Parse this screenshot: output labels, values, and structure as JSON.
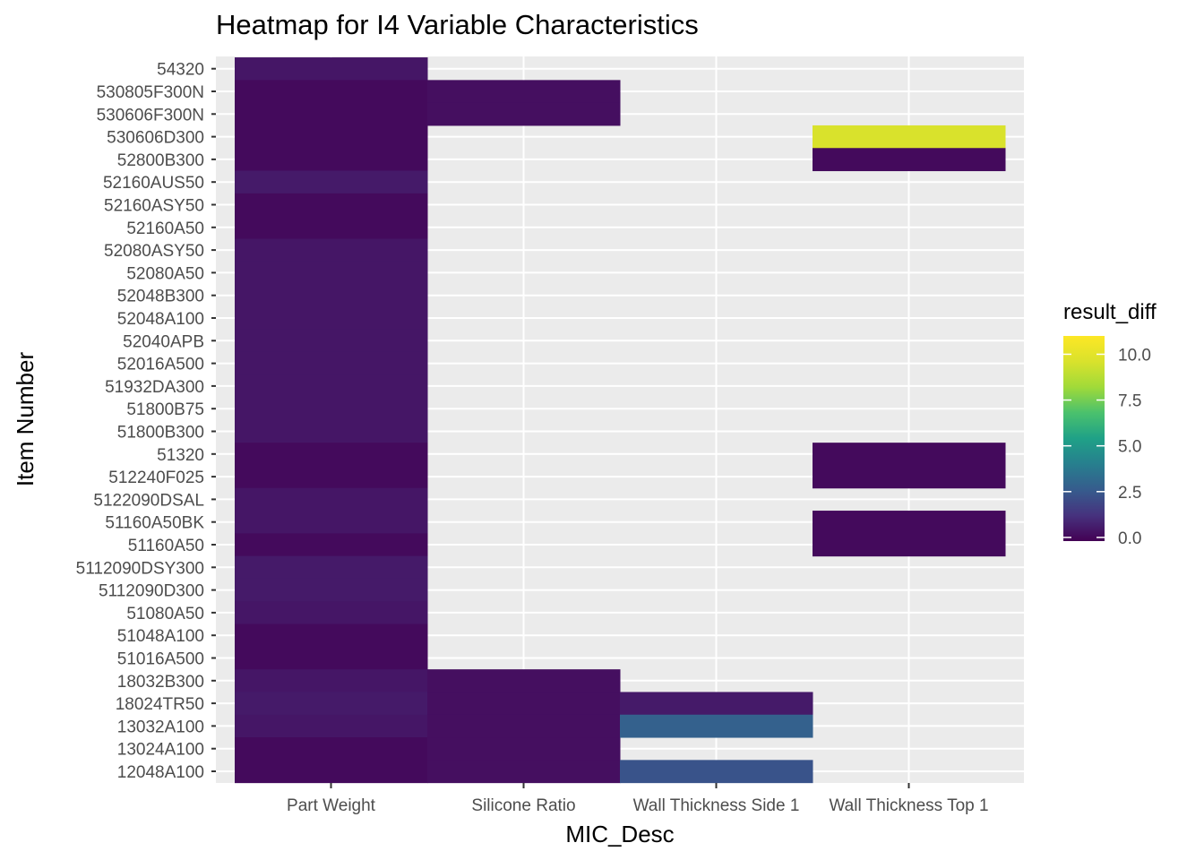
{
  "chart_data": {
    "type": "heatmap",
    "title": "Heatmap for I4 Variable Characteristics",
    "xlabel": "MIC_Desc",
    "ylabel": "Item Number",
    "x_categories": [
      "Part Weight",
      "Silicone Ratio",
      "Wall Thickness Side 1",
      "Wall Thickness Top 1"
    ],
    "y_categories": [
      "12048A100",
      "13024A100",
      "13032A100",
      "18024TR50",
      "18032B300",
      "51016A500",
      "51048A100",
      "51080A50",
      "5112090D300",
      "5112090DSY300",
      "51160A50",
      "51160A50BK",
      "5122090DSAL",
      "512240F025",
      "51320",
      "51800B300",
      "51800B75",
      "51932DA300",
      "52016A500",
      "52040APB",
      "52048A100",
      "52048B300",
      "52080A50",
      "52080ASY50",
      "52160A50",
      "52160ASY50",
      "52160AUS50",
      "52800B300",
      "530606D300",
      "530606F300N",
      "530805F300N",
      "54320"
    ],
    "cells": [
      {
        "x": "Part Weight",
        "y": "54320",
        "value": 0.4
      },
      {
        "x": "Part Weight",
        "y": "530805F300N",
        "value": 0.05
      },
      {
        "x": "Part Weight",
        "y": "530606F300N",
        "value": 0.05
      },
      {
        "x": "Part Weight",
        "y": "530606D300",
        "value": 0.05
      },
      {
        "x": "Part Weight",
        "y": "52800B300",
        "value": 0.05
      },
      {
        "x": "Part Weight",
        "y": "52160AUS50",
        "value": 0.5
      },
      {
        "x": "Part Weight",
        "y": "52160ASY50",
        "value": 0.05
      },
      {
        "x": "Part Weight",
        "y": "52160A50",
        "value": 0.05
      },
      {
        "x": "Part Weight",
        "y": "52080ASY50",
        "value": 0.4
      },
      {
        "x": "Part Weight",
        "y": "52080A50",
        "value": 0.4
      },
      {
        "x": "Part Weight",
        "y": "52048B300",
        "value": 0.4
      },
      {
        "x": "Part Weight",
        "y": "52048A100",
        "value": 0.4
      },
      {
        "x": "Part Weight",
        "y": "52040APB",
        "value": 0.4
      },
      {
        "x": "Part Weight",
        "y": "52016A500",
        "value": 0.4
      },
      {
        "x": "Part Weight",
        "y": "51932DA300",
        "value": 0.4
      },
      {
        "x": "Part Weight",
        "y": "51800B75",
        "value": 0.4
      },
      {
        "x": "Part Weight",
        "y": "51800B300",
        "value": 0.4
      },
      {
        "x": "Part Weight",
        "y": "51320",
        "value": 0.05
      },
      {
        "x": "Part Weight",
        "y": "512240F025",
        "value": 0.05
      },
      {
        "x": "Part Weight",
        "y": "5122090DSAL",
        "value": 0.4
      },
      {
        "x": "Part Weight",
        "y": "51160A50BK",
        "value": 0.4
      },
      {
        "x": "Part Weight",
        "y": "51160A50",
        "value": 0.05
      },
      {
        "x": "Part Weight",
        "y": "5112090DSY300",
        "value": 0.5
      },
      {
        "x": "Part Weight",
        "y": "5112090D300",
        "value": 0.5
      },
      {
        "x": "Part Weight",
        "y": "51080A50",
        "value": 0.4
      },
      {
        "x": "Part Weight",
        "y": "51048A100",
        "value": 0.05
      },
      {
        "x": "Part Weight",
        "y": "51016A500",
        "value": 0.05
      },
      {
        "x": "Part Weight",
        "y": "18032B300",
        "value": 0.4
      },
      {
        "x": "Part Weight",
        "y": "18024TR50",
        "value": 0.5
      },
      {
        "x": "Part Weight",
        "y": "13032A100",
        "value": 0.4
      },
      {
        "x": "Part Weight",
        "y": "13024A100",
        "value": 0.05
      },
      {
        "x": "Part Weight",
        "y": "12048A100",
        "value": 0.05
      },
      {
        "x": "Silicone Ratio",
        "y": "530805F300N",
        "value": 0.2
      },
      {
        "x": "Silicone Ratio",
        "y": "530606F300N",
        "value": 0.2
      },
      {
        "x": "Silicone Ratio",
        "y": "18032B300",
        "value": 0.2
      },
      {
        "x": "Silicone Ratio",
        "y": "18024TR50",
        "value": 0.2
      },
      {
        "x": "Silicone Ratio",
        "y": "13032A100",
        "value": 0.2
      },
      {
        "x": "Silicone Ratio",
        "y": "13024A100",
        "value": 0.2
      },
      {
        "x": "Silicone Ratio",
        "y": "12048A100",
        "value": 0.2
      },
      {
        "x": "Wall Thickness Side 1",
        "y": "18024TR50",
        "value": 0.5
      },
      {
        "x": "Wall Thickness Side 1",
        "y": "13032A100",
        "value": 2.8
      },
      {
        "x": "Wall Thickness Side 1",
        "y": "12048A100",
        "value": 2.3
      },
      {
        "x": "Wall Thickness Top 1",
        "y": "530606D300",
        "value": 9.6
      },
      {
        "x": "Wall Thickness Top 1",
        "y": "52800B300",
        "value": 0.05
      },
      {
        "x": "Wall Thickness Top 1",
        "y": "51320",
        "value": 0.05
      },
      {
        "x": "Wall Thickness Top 1",
        "y": "512240F025",
        "value": 0.05
      },
      {
        "x": "Wall Thickness Top 1",
        "y": "51160A50BK",
        "value": 0.05
      },
      {
        "x": "Wall Thickness Top 1",
        "y": "51160A50",
        "value": 0.05
      }
    ],
    "legend": {
      "title": "result_diff",
      "placement": "right",
      "min": -0.2,
      "max": 11,
      "ticks": [
        {
          "value": 0.0,
          "label": "0.0"
        },
        {
          "value": 2.5,
          "label": "2.5"
        },
        {
          "value": 5.0,
          "label": "5.0"
        },
        {
          "value": 7.5,
          "label": "7.5"
        },
        {
          "value": 10.0,
          "label": "10.0"
        }
      ],
      "colormap": "viridis"
    },
    "grid": true,
    "panel_background": "#ebebeb",
    "grid_color": "#ffffff"
  }
}
